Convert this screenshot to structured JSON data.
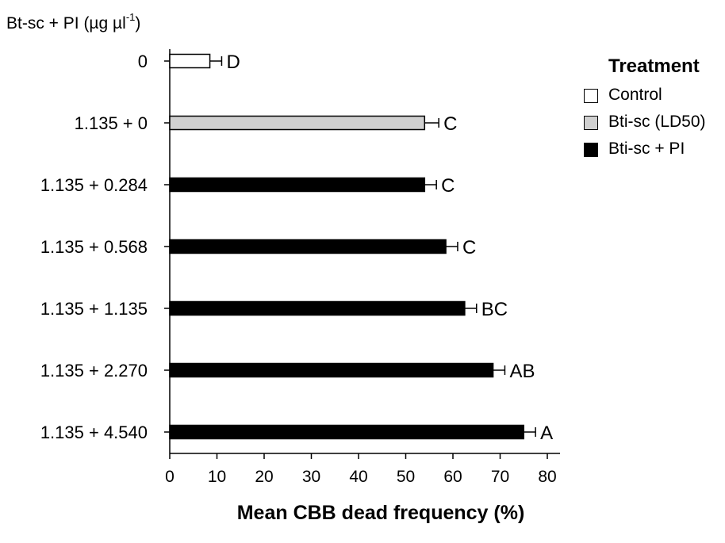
{
  "chart_data": {
    "type": "bar",
    "orientation": "horizontal",
    "ylabel_prefix": "Bt-sc + PI (µg µl",
    "ylabel_sup": "-1",
    "ylabel_suffix": ")",
    "xlabel": "Mean CBB dead frequency (%)",
    "xlim": [
      0,
      80
    ],
    "xticks": [
      "0",
      "10",
      "20",
      "30",
      "40",
      "50",
      "60",
      "70",
      "80"
    ],
    "categories": [
      "0",
      "1.135 + 0",
      "1.135 + 0.284",
      "1.135 + 0.568",
      "1.135 + 1.135",
      "1.135 + 2.270",
      "1.135 + 4.540"
    ],
    "values": [
      8.5,
      54,
      54,
      58.5,
      62.5,
      68.5,
      75
    ],
    "errors": [
      2.5,
      3,
      2.5,
      2.5,
      2.5,
      2.5,
      2.5
    ],
    "letters": [
      "D",
      "C",
      "C",
      "C",
      "BC",
      "AB",
      "A"
    ],
    "treatment": [
      "Control",
      "Bti-sc (LD50)",
      "Bti-sc + PI",
      "Bti-sc + PI",
      "Bti-sc + PI",
      "Bti-sc + PI",
      "Bti-sc + PI"
    ],
    "grid": false,
    "legend_position": "top-right",
    "legend": {
      "title": "Treatment",
      "items": [
        {
          "label": "Control",
          "color": "#ffffff"
        },
        {
          "label": "Bti-sc (LD50)",
          "color": "#d0d0d0"
        },
        {
          "label": "Bti-sc + PI",
          "color": "#000000"
        }
      ]
    }
  }
}
